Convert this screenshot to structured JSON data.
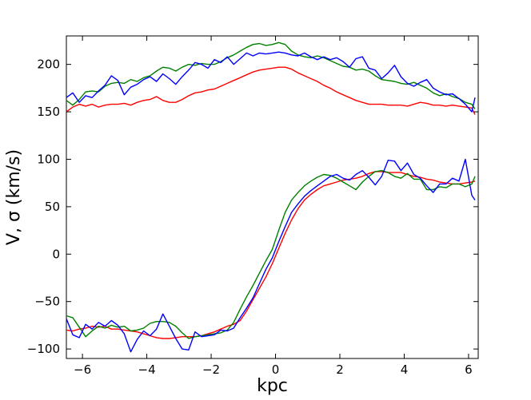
{
  "chart_data": {
    "type": "line",
    "title": "",
    "xlabel": "kpc",
    "ylabel": "V, σ (km/s)",
    "xlim": [
      -6.5,
      6.3
    ],
    "ylim": [
      -110,
      230
    ],
    "grid": false,
    "legend": "none",
    "x_ticks": [
      -6,
      -4,
      -2,
      0,
      2,
      4,
      6
    ],
    "y_ticks": [
      -100,
      -50,
      0,
      50,
      100,
      150,
      200
    ],
    "x_tick_labels": [
      "−6",
      "−4",
      "−2",
      "0",
      "2",
      "4",
      "6"
    ],
    "y_tick_labels": [
      "−100",
      "−50",
      "0",
      "50",
      "100",
      "150",
      "200"
    ],
    "series": [
      {
        "color": "#0000ff",
        "group": "sigma",
        "x": [
          -6.5,
          -6.3,
          -6.1,
          -5.9,
          -5.7,
          -5.5,
          -5.3,
          -5.1,
          -4.9,
          -4.7,
          -4.5,
          -4.3,
          -4.1,
          -3.9,
          -3.7,
          -3.5,
          -3.3,
          -3.1,
          -2.9,
          -2.7,
          -2.5,
          -2.3,
          -2.1,
          -1.9,
          -1.7,
          -1.5,
          -1.3,
          -1.1,
          -0.9,
          -0.7,
          -0.5,
          -0.3,
          -0.1,
          0.1,
          0.3,
          0.5,
          0.7,
          0.9,
          1.1,
          1.3,
          1.5,
          1.7,
          1.9,
          2.1,
          2.3,
          2.5,
          2.7,
          2.9,
          3.1,
          3.3,
          3.5,
          3.7,
          3.9,
          4.1,
          4.3,
          4.5,
          4.7,
          4.9,
          5.1,
          5.3,
          5.5,
          5.7,
          5.9,
          6.1,
          6.2
        ],
        "y": [
          165,
          170,
          160,
          167,
          165,
          172,
          178,
          188,
          183,
          168,
          176,
          179,
          184,
          187,
          182,
          190,
          185,
          179,
          187,
          194,
          202,
          200,
          196,
          205,
          202,
          208,
          200,
          206,
          212,
          209,
          212,
          211,
          212,
          213,
          212,
          210,
          209,
          212,
          208,
          205,
          208,
          205,
          207,
          203,
          197,
          206,
          208,
          196,
          194,
          185,
          191,
          199,
          187,
          180,
          177,
          181,
          184,
          175,
          171,
          168,
          169,
          164,
          158,
          150,
          165
        ],
        "x2": [
          -6.5,
          -6.3,
          -6.1,
          -5.9,
          -5.7,
          -5.5,
          -5.3,
          -5.1,
          -4.9,
          -4.7,
          -4.5,
          -4.3,
          -4.1,
          -3.9,
          -3.7,
          -3.5,
          -3.3,
          -3.1,
          -2.9,
          -2.7,
          -2.5,
          -2.3,
          -2.1,
          -1.9,
          -1.7,
          -1.5,
          -1.3,
          -1.1,
          -0.9,
          -0.7,
          -0.5,
          -0.3,
          -0.1,
          0.1,
          0.3,
          0.5,
          0.7,
          0.9,
          1.1,
          1.3,
          1.5,
          1.7,
          1.9,
          2.1,
          2.3,
          2.5,
          2.7,
          2.9,
          3.1,
          3.3,
          3.5,
          3.7,
          3.9,
          4.1,
          4.3,
          4.5,
          4.7,
          4.9,
          5.1,
          5.3,
          5.5,
          5.7,
          5.9,
          6.1,
          6.2
        ],
        "y2": [
          -68,
          -85,
          -88,
          -74,
          -79,
          -72,
          -76,
          -70,
          -75,
          -84,
          -103,
          -90,
          -81,
          -86,
          -79,
          -63,
          -76,
          -89,
          -100,
          -101,
          -82,
          -87,
          -86,
          -85,
          -80,
          -81,
          -78,
          -67,
          -57,
          -46,
          -31,
          -16,
          -4,
          13,
          29,
          44,
          53,
          61,
          67,
          72,
          77,
          82,
          84,
          80,
          78,
          84,
          88,
          81,
          73,
          82,
          99,
          98,
          88,
          96,
          84,
          80,
          72,
          65,
          74,
          74,
          80,
          77,
          100,
          62,
          57
        ]
      },
      {
        "color": "#008000",
        "group": "sigma",
        "x": [
          -6.5,
          -6.3,
          -6.1,
          -5.9,
          -5.7,
          -5.5,
          -5.3,
          -5.1,
          -4.9,
          -4.7,
          -4.5,
          -4.3,
          -4.1,
          -3.9,
          -3.7,
          -3.5,
          -3.3,
          -3.1,
          -2.9,
          -2.7,
          -2.5,
          -2.3,
          -2.1,
          -1.9,
          -1.7,
          -1.5,
          -1.3,
          -1.1,
          -0.9,
          -0.7,
          -0.5,
          -0.3,
          -0.1,
          0.1,
          0.3,
          0.5,
          0.7,
          0.9,
          1.1,
          1.3,
          1.5,
          1.7,
          1.9,
          2.1,
          2.3,
          2.5,
          2.7,
          2.9,
          3.1,
          3.3,
          3.5,
          3.7,
          3.9,
          4.1,
          4.3,
          4.5,
          4.7,
          4.9,
          5.1,
          5.3,
          5.5,
          5.7,
          5.9,
          6.1,
          6.2
        ],
        "y": [
          162,
          157,
          163,
          171,
          172,
          171,
          177,
          180,
          181,
          180,
          184,
          182,
          186,
          188,
          193,
          197,
          196,
          193,
          197,
          200,
          199,
          201,
          200,
          200,
          203,
          207,
          210,
          214,
          218,
          221,
          222,
          220,
          221,
          223,
          221,
          214,
          210,
          208,
          207,
          209,
          207,
          204,
          201,
          198,
          197,
          194,
          195,
          193,
          188,
          184,
          183,
          182,
          180,
          179,
          181,
          178,
          175,
          170,
          167,
          169,
          166,
          164,
          160,
          158,
          153
        ],
        "x2": [
          -6.5,
          -6.3,
          -6.1,
          -5.9,
          -5.7,
          -5.5,
          -5.3,
          -5.1,
          -4.9,
          -4.7,
          -4.5,
          -4.3,
          -4.1,
          -3.9,
          -3.7,
          -3.5,
          -3.3,
          -3.1,
          -2.9,
          -2.7,
          -2.5,
          -2.3,
          -2.1,
          -1.9,
          -1.7,
          -1.5,
          -1.3,
          -1.1,
          -0.9,
          -0.7,
          -0.5,
          -0.3,
          -0.1,
          0.1,
          0.3,
          0.5,
          0.7,
          0.9,
          1.1,
          1.3,
          1.5,
          1.7,
          1.9,
          2.1,
          2.3,
          2.5,
          2.7,
          2.9,
          3.1,
          3.3,
          3.5,
          3.7,
          3.9,
          4.1,
          4.3,
          4.5,
          4.7,
          4.9,
          5.1,
          5.3,
          5.5,
          5.7,
          5.9,
          6.1,
          6.2
        ],
        "y2": [
          -65,
          -67,
          -77,
          -87,
          -81,
          -76,
          -78,
          -75,
          -77,
          -76,
          -81,
          -80,
          -78,
          -73,
          -71,
          -71,
          -72,
          -76,
          -83,
          -89,
          -87,
          -86,
          -85,
          -84,
          -83,
          -80,
          -72,
          -58,
          -45,
          -33,
          -20,
          -7,
          5,
          25,
          44,
          57,
          65,
          72,
          77,
          81,
          84,
          83,
          80,
          76,
          72,
          68,
          76,
          82,
          87,
          88,
          86,
          82,
          80,
          85,
          79,
          79,
          68,
          68,
          71,
          70,
          74,
          74,
          71,
          74,
          82
        ]
      },
      {
        "color": "#ff0000",
        "group": "sigma",
        "x": [
          -6.5,
          -6.3,
          -6.1,
          -5.9,
          -5.7,
          -5.5,
          -5.3,
          -5.1,
          -4.9,
          -4.7,
          -4.5,
          -4.3,
          -4.1,
          -3.9,
          -3.7,
          -3.5,
          -3.3,
          -3.1,
          -2.9,
          -2.7,
          -2.5,
          -2.3,
          -2.1,
          -1.9,
          -1.7,
          -1.5,
          -1.3,
          -1.1,
          -0.9,
          -0.7,
          -0.5,
          -0.3,
          -0.1,
          0.1,
          0.3,
          0.5,
          0.7,
          0.9,
          1.1,
          1.3,
          1.5,
          1.7,
          1.9,
          2.1,
          2.3,
          2.5,
          2.7,
          2.9,
          3.1,
          3.3,
          3.5,
          3.7,
          3.9,
          4.1,
          4.3,
          4.5,
          4.7,
          4.9,
          5.1,
          5.3,
          5.5,
          5.7,
          5.9,
          6.1,
          6.2
        ],
        "y": [
          150,
          155,
          158,
          156,
          158,
          155,
          157,
          158,
          158,
          159,
          157,
          160,
          162,
          163,
          166,
          162,
          160,
          160,
          163,
          167,
          170,
          171,
          173,
          174,
          177,
          180,
          183,
          186,
          189,
          192,
          194,
          195,
          196,
          197,
          197,
          195,
          191,
          188,
          185,
          182,
          178,
          175,
          171,
          168,
          165,
          162,
          160,
          158,
          158,
          158,
          157,
          157,
          157,
          156,
          158,
          160,
          159,
          157,
          157,
          156,
          157,
          156,
          155,
          154,
          147
        ],
        "x2": [
          -6.5,
          -6.3,
          -6.1,
          -5.9,
          -5.7,
          -5.5,
          -5.3,
          -5.1,
          -4.9,
          -4.7,
          -4.5,
          -4.3,
          -4.1,
          -3.9,
          -3.7,
          -3.5,
          -3.3,
          -3.1,
          -2.9,
          -2.7,
          -2.5,
          -2.3,
          -2.1,
          -1.9,
          -1.7,
          -1.5,
          -1.3,
          -1.1,
          -0.9,
          -0.7,
          -0.5,
          -0.3,
          -0.1,
          0.1,
          0.3,
          0.5,
          0.7,
          0.9,
          1.1,
          1.3,
          1.5,
          1.7,
          1.9,
          2.1,
          2.3,
          2.5,
          2.7,
          2.9,
          3.1,
          3.3,
          3.5,
          3.7,
          3.9,
          4.1,
          4.3,
          4.5,
          4.7,
          4.9,
          5.1,
          5.3,
          5.5,
          5.7,
          5.9,
          6.1,
          6.2
        ],
        "y2": [
          -80,
          -81,
          -79,
          -78,
          -76,
          -77,
          -76,
          -79,
          -79,
          -80,
          -81,
          -82,
          -84,
          -86,
          -88,
          -89,
          -89,
          -88,
          -87,
          -87,
          -87,
          -86,
          -84,
          -82,
          -79,
          -76,
          -74,
          -70,
          -60,
          -48,
          -36,
          -24,
          -10,
          6,
          22,
          36,
          48,
          57,
          63,
          68,
          72,
          74,
          76,
          78,
          79,
          80,
          82,
          85,
          87,
          87,
          86,
          86,
          86,
          84,
          82,
          81,
          79,
          78,
          76,
          75,
          74,
          74,
          75,
          76,
          77
        ]
      }
    ]
  }
}
